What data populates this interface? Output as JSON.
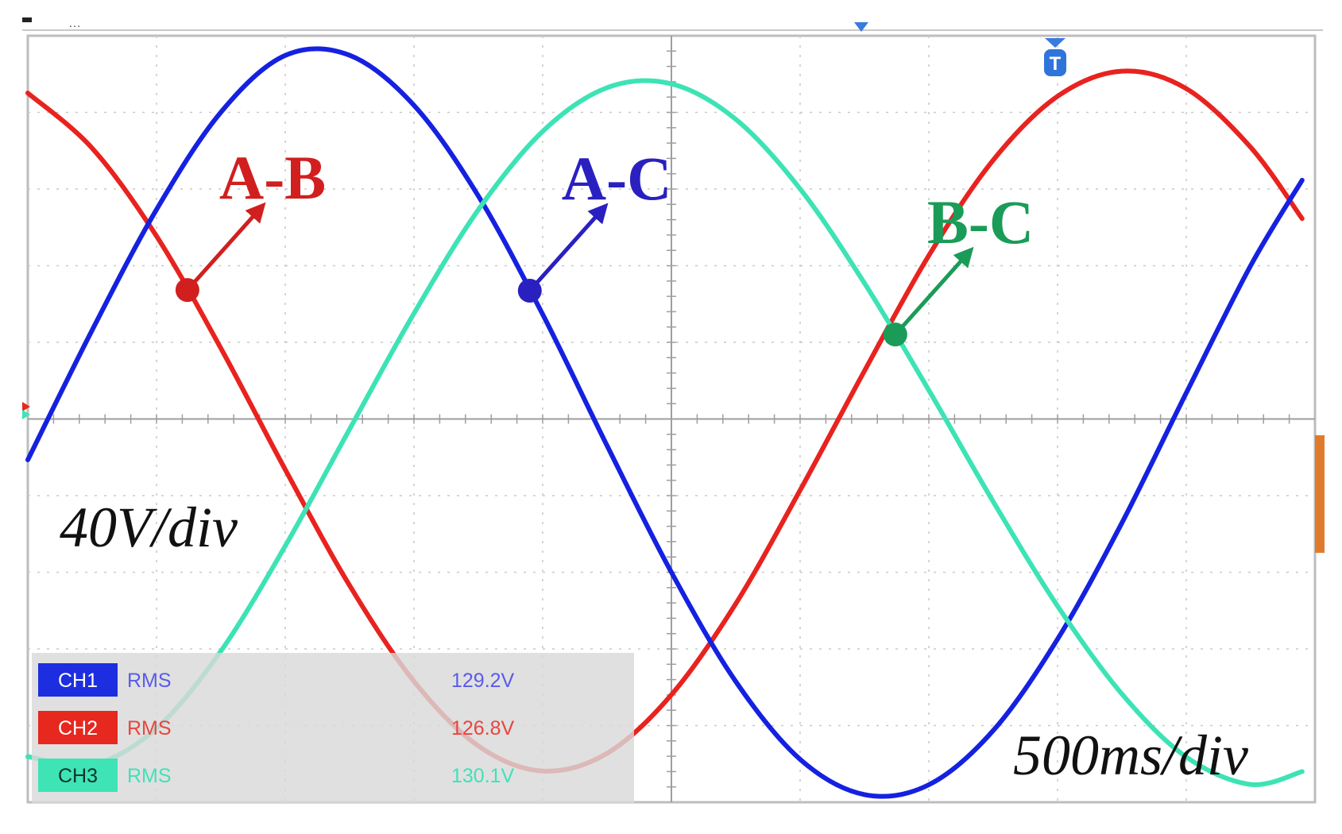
{
  "chart_data": {
    "type": "line",
    "title": "",
    "xlabel": "",
    "ylabel": "",
    "x_scale": "500ms/div",
    "y_scale": "40V/div",
    "x_divisions": 10,
    "y_divisions": 10,
    "xlim": [
      0,
      5.0
    ],
    "ylim": [
      -200,
      200
    ],
    "x_unit": "s",
    "y_unit": "V",
    "grid": true,
    "series": [
      {
        "name": "A-B",
        "channel": "CH2",
        "color": "#e8231f",
        "x": [
          0.0,
          0.25,
          0.5,
          0.75,
          1.0,
          1.25,
          1.5,
          1.75,
          2.0,
          2.25,
          2.5,
          2.75,
          3.0,
          3.25,
          3.5,
          3.75,
          4.0,
          4.25,
          4.5,
          4.75,
          4.95
        ],
        "y": [
          170.1,
          141.3,
          95.4,
          36.9,
          -26.4,
          -86.9,
          -136.9,
          -170.6,
          -183.7,
          -174.5,
          -143.9,
          -96.4,
          -37.2,
          25.1,
          85.3,
          135.1,
          168.4,
          181.5,
          172.4,
          141.8,
          104.6
        ]
      },
      {
        "name": "A-C",
        "channel": "CH1",
        "color": "#1521e0",
        "x": [
          0.0,
          0.25,
          0.5,
          0.75,
          1.0,
          1.25,
          1.5,
          1.75,
          2.0,
          2.25,
          2.5,
          2.75,
          3.0,
          3.25,
          3.5,
          3.75,
          4.0,
          4.25,
          4.5,
          4.75,
          4.95
        ],
        "y": [
          -21.3,
          46.4,
          109.3,
          160.1,
          189.7,
          189.8,
          163.7,
          116.4,
          54.6,
          -13.9,
          -80.0,
          -137.0,
          -177.6,
          -196.0,
          -190.9,
          -162.6,
          -114.9,
          -54.2,
          13.6,
          80.0,
          124.6
        ]
      },
      {
        "name": "B-C",
        "channel": "CH3",
        "color": "#3de3b4",
        "x": [
          0.0,
          0.25,
          0.5,
          0.75,
          1.0,
          1.25,
          1.5,
          1.75,
          2.0,
          2.25,
          2.5,
          2.75,
          3.0,
          3.25,
          3.5,
          3.75,
          4.0,
          4.25,
          4.5,
          4.75,
          4.95
        ],
        "y": [
          -176.2,
          -180.4,
          -161.4,
          -121.1,
          -66.3,
          -5.3,
          55.1,
          109.2,
          150.1,
          172.9,
          174.9,
          156.4,
          120.1,
          70.9,
          15.0,
          -43.1,
          -97.6,
          -143.5,
          -176.4,
          -190.7,
          -184.0
        ]
      }
    ],
    "annotations": [
      {
        "text": "A-B",
        "color": "#d11f1f",
        "series": "A-B",
        "x": 0.62
      },
      {
        "text": "A-C",
        "color": "#2a20c0",
        "series": "A-C",
        "x": 1.95
      },
      {
        "text": "B-C",
        "color": "#1a9c58",
        "series": "B-C",
        "x": 3.37
      }
    ],
    "scale_labels": {
      "x": "500ms/div",
      "y": "40V/div"
    },
    "measurements": [
      {
        "channel": "CH1",
        "type": "RMS",
        "value": "129.2V",
        "badge_color": "#1d2ee0",
        "text_color": "#5b5be8",
        "badge_text_color": "#ffffff"
      },
      {
        "channel": "CH2",
        "type": "RMS",
        "value": "126.8V",
        "badge_color": "#e6281f",
        "text_color": "#e8453d",
        "badge_text_color": "#ffffff"
      },
      {
        "channel": "CH3",
        "type": "RMS",
        "value": "130.1V",
        "badge_color": "#3ee3b6",
        "text_color": "#3ee3b6",
        "badge_text_color": "#10332a"
      }
    ]
  }
}
